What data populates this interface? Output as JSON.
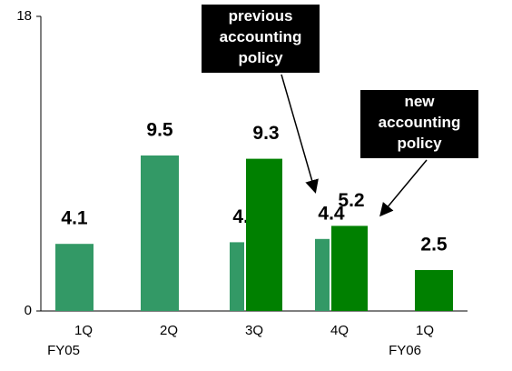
{
  "chart_data": {
    "type": "bar",
    "categories": [
      [
        "1Q",
        "FY05"
      ],
      [
        "2Q"
      ],
      [
        "3Q"
      ],
      [
        "4Q"
      ],
      [
        "1Q",
        "FY06"
      ]
    ],
    "series": [
      {
        "name": "previous accounting policy",
        "color": "#339966",
        "values": [
          4.1,
          9.5,
          4.2,
          4.4,
          null
        ]
      },
      {
        "name": "new accounting policy",
        "color": "#008000",
        "values": [
          null,
          null,
          9.3,
          5.2,
          2.5
        ]
      }
    ],
    "ylim": [
      0,
      18
    ],
    "yticks": [
      0,
      18
    ],
    "grid": false
  }
}
